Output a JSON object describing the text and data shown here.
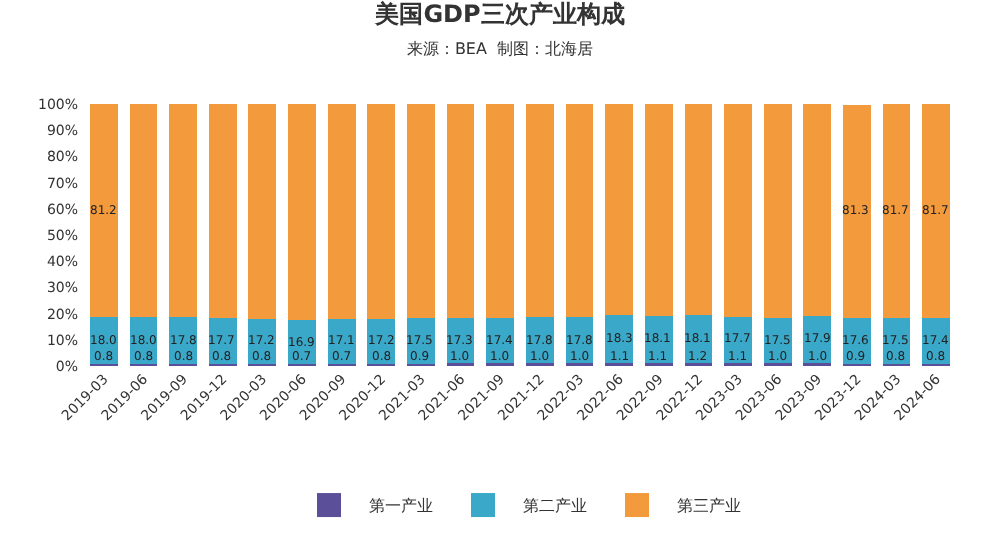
{
  "chart_data": {
    "type": "bar",
    "stacked": true,
    "title": "美国GDP三次产业构成",
    "subtitle": "来源：BEA  制图：北海居",
    "categories": [
      "2019-03",
      "2019-06",
      "2019-09",
      "2019-12",
      "2020-03",
      "2020-06",
      "2020-09",
      "2020-12",
      "2021-03",
      "2021-06",
      "2021-09",
      "2021-12",
      "2022-03",
      "2022-06",
      "2022-09",
      "2022-12",
      "2023-03",
      "2023-06",
      "2023-09",
      "2023-12",
      "2024-03",
      "2024-06"
    ],
    "series": [
      {
        "name": "第一产业",
        "color": "#5b4f9a",
        "values": [
          0.8,
          0.8,
          0.8,
          0.8,
          0.8,
          0.7,
          0.7,
          0.8,
          0.9,
          1.0,
          1.0,
          1.0,
          1.0,
          1.1,
          1.1,
          1.2,
          1.1,
          1.0,
          1.0,
          0.9,
          0.8,
          0.8
        ],
        "value_labels": [
          "0.8",
          "0.8",
          "0.8",
          "0.8",
          "0.8",
          "0.7",
          "0.7",
          "0.8",
          "0.9",
          "1.0",
          "1.0",
          "1.0",
          "1.0",
          "1.1",
          "1.1",
          "1.2",
          "1.1",
          "1.0",
          "1.0",
          "0.9",
          "0.8",
          "0.8"
        ]
      },
      {
        "name": "第二产业",
        "color": "#3aa9c9",
        "values": [
          18.0,
          18.0,
          17.8,
          17.7,
          17.2,
          16.9,
          17.1,
          17.2,
          17.5,
          17.3,
          17.4,
          17.8,
          17.8,
          18.3,
          18.1,
          18.1,
          17.7,
          17.5,
          17.9,
          17.6,
          17.5,
          17.4
        ],
        "value_labels": [
          "18.0",
          "18.0",
          "17.8",
          "17.7",
          "17.2",
          "16.9",
          "17.1",
          "17.2",
          "17.5",
          "17.3",
          "17.4",
          "17.8",
          "17.8",
          "18.3",
          "18.1",
          "18.1",
          "17.7",
          "17.5",
          "17.9",
          "17.6",
          "17.5",
          "17.4"
        ]
      },
      {
        "name": "第三产业",
        "color": "#f39a3c",
        "values": [
          81.2,
          81.2,
          81.4,
          81.5,
          82.0,
          82.4,
          82.2,
          82.0,
          81.6,
          81.7,
          81.6,
          81.2,
          81.2,
          80.6,
          80.8,
          80.7,
          81.2,
          81.5,
          81.1,
          81.3,
          81.7,
          81.7
        ],
        "value_labels": [
          "81.2",
          null,
          null,
          null,
          null,
          null,
          null,
          null,
          null,
          null,
          null,
          null,
          null,
          null,
          null,
          null,
          null,
          null,
          null,
          "81.3",
          "81.7",
          "81.7"
        ]
      }
    ],
    "ylim": [
      0,
      100
    ],
    "yticks": [
      {
        "value": 0,
        "label": "0%"
      },
      {
        "value": 10,
        "label": "10%"
      },
      {
        "value": 20,
        "label": "20%"
      },
      {
        "value": 30,
        "label": "30%"
      },
      {
        "value": 40,
        "label": "40%"
      },
      {
        "value": 50,
        "label": "50%"
      },
      {
        "value": 60,
        "label": "60%"
      },
      {
        "value": 70,
        "label": "70%"
      },
      {
        "value": 80,
        "label": "80%"
      },
      {
        "value": 90,
        "label": "90%"
      },
      {
        "value": 100,
        "label": "100%"
      }
    ],
    "legend": "bottom"
  }
}
